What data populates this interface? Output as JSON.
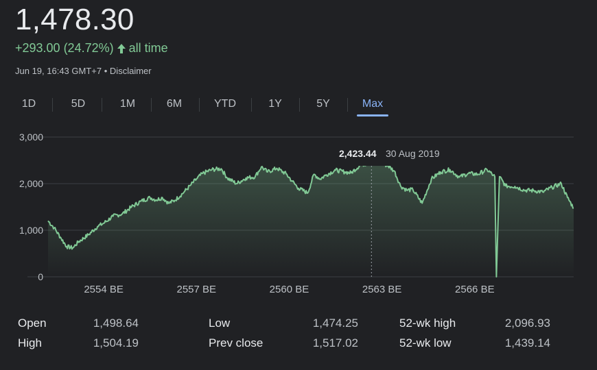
{
  "header": {
    "price": "1,478.30",
    "change": "+293.00 (24.72%)",
    "period": "all time",
    "timestamp": "Jun 19, 16:43 GMT+7",
    "separator": "•",
    "disclaimer": "Disclaimer"
  },
  "tabs": [
    "1D",
    "5D",
    "1M",
    "6M",
    "YTD",
    "1Y",
    "5Y",
    "Max"
  ],
  "active_tab": "Max",
  "colors": {
    "line": "#81c995",
    "accent": "#8ab4f8",
    "background": "#202124"
  },
  "tooltip": {
    "value": "2,423.44",
    "date": "30 Aug 2019"
  },
  "chart_data": {
    "type": "area",
    "ylim": [
      0,
      3000
    ],
    "y_ticks": [
      "3,000",
      "2,000",
      "1,000",
      "0"
    ],
    "x_ticks": [
      "2554 BE",
      "2557 BE",
      "2560 BE",
      "2563 BE",
      "2566 BE"
    ],
    "x_tick_years": [
      2554,
      2557,
      2560,
      2563,
      2566
    ],
    "xlim": [
      2552.2,
      2569.2
    ],
    "grid": true,
    "x": [
      2552.2,
      2552.4,
      2552.6,
      2552.8,
      2553.0,
      2553.2,
      2553.5,
      2553.8,
      2554.0,
      2554.3,
      2554.6,
      2554.9,
      2555.2,
      2555.5,
      2555.7,
      2555.9,
      2556.1,
      2556.3,
      2556.6,
      2556.8,
      2557.0,
      2557.2,
      2557.5,
      2557.8,
      2558.0,
      2558.3,
      2558.6,
      2558.9,
      2559.1,
      2559.3,
      2559.6,
      2559.9,
      2560.1,
      2560.3,
      2560.6,
      2560.8,
      2561.0,
      2561.2,
      2561.5,
      2561.8,
      2562.0,
      2562.3,
      2562.6,
      2562.8,
      2563.0,
      2563.2,
      2563.4,
      2563.6,
      2563.8,
      2564.0,
      2564.3,
      2564.6,
      2564.9,
      2565.2,
      2565.5,
      2565.8,
      2566.1,
      2566.4,
      2566.6,
      2566.65,
      2566.7,
      2566.8,
      2567.0,
      2567.3,
      2567.6,
      2567.9,
      2568.2,
      2568.5,
      2568.8,
      2569.0,
      2569.2
    ],
    "y": [
      1200,
      1050,
      850,
      650,
      620,
      760,
      900,
      1080,
      1150,
      1300,
      1350,
      1500,
      1620,
      1700,
      1650,
      1700,
      1580,
      1640,
      1820,
      1960,
      2100,
      2220,
      2300,
      2320,
      2120,
      2000,
      2120,
      2150,
      2360,
      2250,
      2330,
      2210,
      2050,
      1900,
      1800,
      2200,
      2100,
      2190,
      2290,
      2250,
      2230,
      2400,
      2440,
      2420,
      2430,
      2380,
      2270,
      1950,
      1860,
      1870,
      1580,
      2100,
      2250,
      2300,
      2140,
      2220,
      2200,
      2300,
      2180,
      2150,
      0,
      2150,
      1950,
      1940,
      1860,
      1850,
      1820,
      1920,
      2000,
      1700,
      1478
    ]
  },
  "stats": {
    "open_label": "Open",
    "open": "1,498.64",
    "high_label": "High",
    "high": "1,504.19",
    "low_label": "Low",
    "low": "1,474.25",
    "prev_close_label": "Prev close",
    "prev_close": "1,517.02",
    "wk52_high_label": "52-wk high",
    "wk52_high": "2,096.93",
    "wk52_low_label": "52-wk low",
    "wk52_low": "1,439.14"
  }
}
